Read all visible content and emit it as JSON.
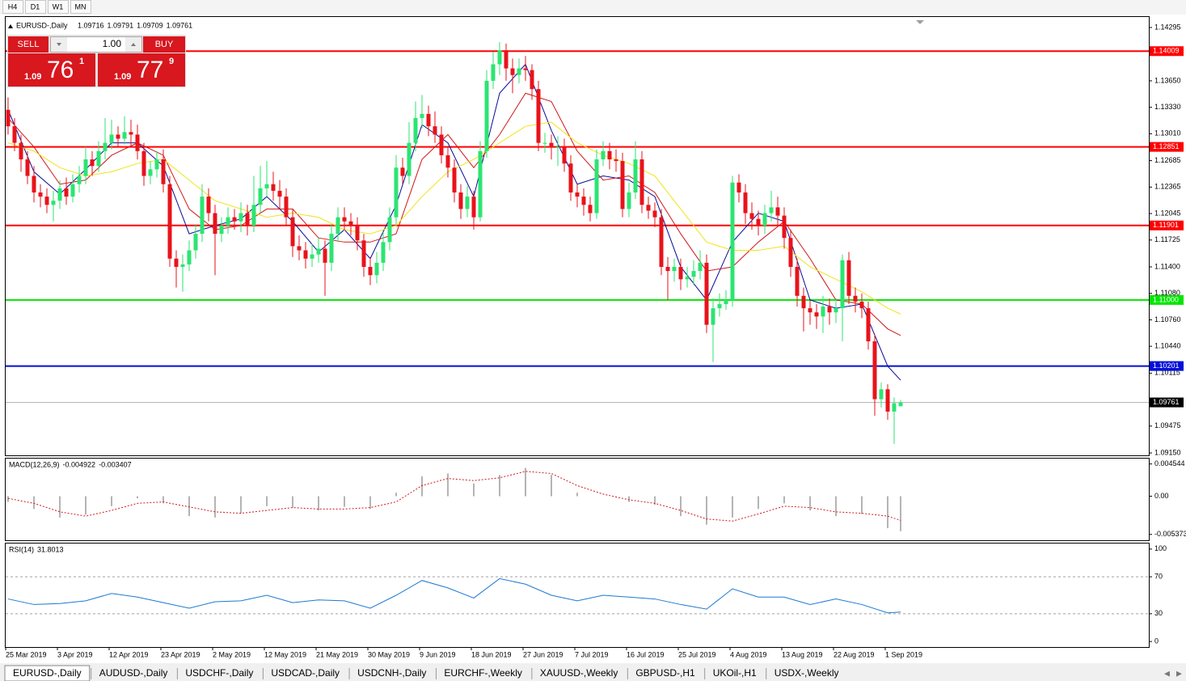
{
  "toolbar": [
    "H4",
    "D1",
    "W1",
    "MN"
  ],
  "trade_panel": {
    "sell": "SELL",
    "buy": "BUY",
    "volume": "1.00",
    "bid": {
      "big": "1.09",
      "pips": "76",
      "fraction": "1"
    },
    "ask": {
      "big": "1.09",
      "pips": "77",
      "fraction": "9"
    }
  },
  "chart_data": {
    "type": "candlestick",
    "symbol": "EURUSD-,Daily",
    "up_color": "#2be572",
    "down_color": "#e8131b",
    "ylim": [
      1.09121,
      1.14422
    ],
    "yticks": [
      1.14295,
      {
        "value": 1.1365,
        "label": "1.13650"
      },
      {
        "value": 1.1333,
        "label": "1.13330"
      },
      {
        "value": 1.1301,
        "label": "1.13010"
      },
      1.12685,
      1.12365,
      1.12045,
      1.11725,
      {
        "value": 1.114,
        "label": "1.11400"
      },
      {
        "value": 1.1108,
        "label": "1.11080"
      },
      {
        "value": 1.1076,
        "label": "1.10760"
      },
      {
        "value": 1.1044,
        "label": "1.10440"
      },
      1.10115,
      1.09475,
      {
        "value": 1.0915,
        "label": "1.09150"
      }
    ],
    "dates": [
      "25 Mar 2019",
      "3 Apr 2019",
      "12 Apr 2019",
      "23 Apr 2019",
      "2 May 2019",
      "12 May 2019",
      "21 May 2019",
      "30 May 2019",
      "9 Jun 2019",
      "18 Jun 2019",
      "27 Jun 2019",
      "7 Jul 2019",
      "16 Jul 2019",
      "25 Jul 2019",
      "4 Aug 2019",
      "13 Aug 2019",
      "22 Aug 2019",
      "1 Sep 2019"
    ],
    "open": [
      1.133,
      1.131,
      1.129,
      1.127,
      1.125,
      1.123,
      1.1225,
      1.1215,
      1.122,
      1.1235,
      1.1225,
      1.124,
      1.125,
      1.127,
      1.1262,
      1.128,
      1.129,
      1.13,
      1.1295,
      1.1303,
      1.13,
      1.128,
      1.125,
      1.1258,
      1.127,
      1.124,
      1.115,
      1.114,
      1.1143,
      1.116,
      1.118,
      1.1225,
      1.1205,
      1.118,
      1.119,
      1.12,
      1.1195,
      1.1205,
      1.119,
      1.1215,
      1.1235,
      1.124,
      1.1232,
      1.1225,
      1.12,
      1.1165,
      1.116,
      1.115,
      1.1155,
      1.1162,
      1.1145,
      1.118,
      1.12,
      1.1195,
      1.119,
      1.1172,
      1.114,
      1.113,
      1.1145,
      1.117,
      1.12,
      1.126,
      1.125,
      1.129,
      1.132,
      1.1325,
      1.131,
      1.13,
      1.1275,
      1.126,
      1.123,
      1.121,
      1.1225,
      1.12,
      1.128,
      1.1365,
      1.1385,
      1.1402,
      1.138,
      1.1372,
      1.138,
      1.1378,
      1.1355,
      1.129,
      1.129,
      1.1285,
      1.1285,
      1.1265,
      1.123,
      1.1225,
      1.1215,
      1.1205,
      1.127,
      1.128,
      1.127,
      1.1268,
      1.121,
      1.123,
      1.127,
      1.1215,
      1.1208,
      1.12,
      1.114,
      1.1135,
      1.114,
      1.1125,
      1.1128,
      1.1135,
      1.1145,
      1.107,
      1.109,
      1.1095,
      1.11,
      1.1242,
      1.123,
      1.1205,
      1.1198,
      1.119,
      1.1205,
      1.1212,
      1.1202,
      1.1175,
      1.114,
      1.1105,
      1.109,
      1.1085,
      1.108,
      1.1092,
      1.1085,
      1.109,
      1.1148,
      1.1105,
      1.1098,
      1.109,
      1.105,
      1.098,
      1.0992,
      1.0965,
      1.09716
    ],
    "high": [
      1.1345,
      1.132,
      1.13,
      1.128,
      1.1262,
      1.124,
      1.1235,
      1.1232,
      1.1245,
      1.1248,
      1.1252,
      1.1262,
      1.1285,
      1.128,
      1.1292,
      1.132,
      1.1318,
      1.131,
      1.1322,
      1.1318,
      1.1312,
      1.129,
      1.1268,
      1.128,
      1.1282,
      1.125,
      1.116,
      1.1155,
      1.1172,
      1.1192,
      1.124,
      1.1235,
      1.1215,
      1.12,
      1.1212,
      1.121,
      1.1218,
      1.1215,
      1.125,
      1.1262,
      1.1268,
      1.1255,
      1.1245,
      1.1235,
      1.121,
      1.1178,
      1.117,
      1.1168,
      1.1175,
      1.1172,
      1.1192,
      1.1212,
      1.1212,
      1.1205,
      1.12,
      1.118,
      1.1152,
      1.1158,
      1.1182,
      1.1212,
      1.1275,
      1.1272,
      1.1315,
      1.134,
      1.1348,
      1.1335,
      1.1328,
      1.131,
      1.1285,
      1.127,
      1.124,
      1.1238,
      1.1232,
      1.1292,
      1.1378,
      1.14,
      1.1412,
      1.141,
      1.1392,
      1.1392,
      1.1395,
      1.1385,
      1.1365,
      1.1302,
      1.13,
      1.1298,
      1.1295,
      1.1275,
      1.124,
      1.1235,
      1.1225,
      1.1282,
      1.1292,
      1.129,
      1.1282,
      1.1278,
      1.1242,
      1.1292,
      1.128,
      1.1225,
      1.1218,
      1.121,
      1.1152,
      1.115,
      1.115,
      1.114,
      1.1148,
      1.116,
      1.1155,
      1.1102,
      1.1108,
      1.1112,
      1.125,
      1.1252,
      1.124,
      1.1218,
      1.1208,
      1.1215,
      1.1232,
      1.1225,
      1.1212,
      1.1185,
      1.115,
      1.1115,
      1.11,
      1.1095,
      1.1105,
      1.1102,
      1.1102,
      1.1155,
      1.1158,
      1.1115,
      1.1108,
      1.1098,
      1.1058,
      1.1,
      1.0998,
      1.0982,
      1.09791
    ],
    "low": [
      1.13,
      1.128,
      1.1255,
      1.124,
      1.1218,
      1.1212,
      1.1205,
      1.1195,
      1.121,
      1.1215,
      1.1218,
      1.123,
      1.124,
      1.125,
      1.1255,
      1.127,
      1.1282,
      1.1285,
      1.1288,
      1.1285,
      1.127,
      1.1238,
      1.124,
      1.1248,
      1.123,
      1.114,
      1.1115,
      1.111,
      1.1135,
      1.115,
      1.117,
      1.1195,
      1.113,
      1.117,
      1.118,
      1.1185,
      1.1182,
      1.1178,
      1.1182,
      1.1205,
      1.1225,
      1.122,
      1.121,
      1.119,
      1.1152,
      1.1148,
      1.1138,
      1.114,
      1.1145,
      1.1105,
      1.1135,
      1.117,
      1.1185,
      1.1178,
      1.116,
      1.1128,
      1.1118,
      1.112,
      1.1135,
      1.116,
      1.119,
      1.124,
      1.124,
      1.128,
      1.1308,
      1.1298,
      1.129,
      1.1265,
      1.1248,
      1.1218,
      1.1198,
      1.12,
      1.1185,
      1.1195,
      1.1272,
      1.1355,
      1.1372,
      1.1365,
      1.135,
      1.1362,
      1.1365,
      1.1342,
      1.128,
      1.1278,
      1.127,
      1.1262,
      1.1255,
      1.122,
      1.1212,
      1.1202,
      1.1195,
      1.1198,
      1.1262,
      1.1258,
      1.1255,
      1.12,
      1.12,
      1.1222,
      1.1205,
      1.1198,
      1.1188,
      1.113,
      1.11,
      1.1122,
      1.1112,
      1.1115,
      1.1118,
      1.1125,
      1.106,
      1.1025,
      1.108,
      1.1088,
      1.1092,
      1.1218,
      1.1192,
      1.1185,
      1.1178,
      1.118,
      1.1195,
      1.119,
      1.1162,
      1.1128,
      1.1092,
      1.1062,
      1.107,
      1.1065,
      1.106,
      1.107,
      1.1072,
      1.105,
      1.1095,
      1.1085,
      1.1078,
      1.104,
      1.096,
      1.097,
      1.0955,
      1.0926,
      1.09709
    ],
    "close": [
      1.131,
      1.129,
      1.127,
      1.125,
      1.123,
      1.1225,
      1.1215,
      1.122,
      1.1235,
      1.1225,
      1.124,
      1.125,
      1.127,
      1.1262,
      1.128,
      1.129,
      1.13,
      1.1295,
      1.1303,
      1.13,
      1.128,
      1.125,
      1.1258,
      1.127,
      1.124,
      1.115,
      1.114,
      1.1143,
      1.116,
      1.118,
      1.1225,
      1.1205,
      1.118,
      1.119,
      1.12,
      1.1195,
      1.1205,
      1.119,
      1.1215,
      1.1235,
      1.124,
      1.1232,
      1.1225,
      1.12,
      1.1165,
      1.116,
      1.115,
      1.1155,
      1.1162,
      1.1145,
      1.118,
      1.12,
      1.1195,
      1.119,
      1.1172,
      1.114,
      1.113,
      1.1145,
      1.117,
      1.12,
      1.126,
      1.125,
      1.129,
      1.132,
      1.1325,
      1.131,
      1.13,
      1.1275,
      1.126,
      1.123,
      1.121,
      1.1225,
      1.12,
      1.128,
      1.1365,
      1.1385,
      1.1402,
      1.138,
      1.1372,
      1.138,
      1.1378,
      1.1355,
      1.129,
      1.129,
      1.1285,
      1.1285,
      1.1265,
      1.123,
      1.1225,
      1.1215,
      1.1205,
      1.127,
      1.128,
      1.127,
      1.1268,
      1.121,
      1.123,
      1.127,
      1.1215,
      1.1208,
      1.12,
      1.114,
      1.1135,
      1.114,
      1.1125,
      1.1128,
      1.1135,
      1.1145,
      1.107,
      1.109,
      1.1095,
      1.11,
      1.1242,
      1.123,
      1.1205,
      1.1198,
      1.119,
      1.1205,
      1.1212,
      1.1202,
      1.1175,
      1.114,
      1.1105,
      1.109,
      1.1085,
      1.108,
      1.1092,
      1.1085,
      1.109,
      1.1148,
      1.1105,
      1.1098,
      1.109,
      1.105,
      1.098,
      1.0992,
      1.0965,
      1.0975,
      1.09761
    ],
    "levels": [
      {
        "value": 1.14009,
        "color": "#ff0000"
      },
      {
        "value": 1.12851,
        "color": "#ff0000"
      },
      {
        "value": 1.11901,
        "color": "#ff0000"
      },
      {
        "value": 1.11,
        "label": "1.11000",
        "color": "#00e600"
      },
      {
        "value": 1.10201,
        "color": "#0010d8"
      }
    ],
    "current": 1.09761,
    "overlay_x": [
      0,
      4,
      8,
      12,
      16,
      20,
      24,
      28,
      32,
      36,
      40,
      44,
      48,
      52,
      56,
      60,
      64,
      68,
      72,
      76,
      80,
      84,
      88,
      92,
      96,
      100,
      104,
      108,
      112,
      116,
      120,
      124,
      128,
      132,
      136,
      138
    ],
    "overlays": [
      {
        "color": "#0a0a9a",
        "values": [
          1.133,
          1.1255,
          1.1228,
          1.1258,
          1.129,
          1.129,
          1.1262,
          1.118,
          1.119,
          1.1198,
          1.1225,
          1.1195,
          1.1158,
          1.1185,
          1.115,
          1.1215,
          1.1312,
          1.129,
          1.1225,
          1.135,
          1.1385,
          1.1305,
          1.124,
          1.125,
          1.1245,
          1.1225,
          1.114,
          1.11,
          1.117,
          1.1205,
          1.1195,
          1.11,
          1.109,
          1.1095,
          1.102,
          1.1003
        ]
      },
      {
        "color": "#d01818",
        "values": [
          1.132,
          1.1285,
          1.124,
          1.1245,
          1.1275,
          1.129,
          1.1275,
          1.121,
          1.1185,
          1.119,
          1.121,
          1.121,
          1.1175,
          1.117,
          1.117,
          1.118,
          1.127,
          1.13,
          1.126,
          1.13,
          1.135,
          1.134,
          1.128,
          1.1245,
          1.125,
          1.123,
          1.118,
          1.1135,
          1.114,
          1.117,
          1.1195,
          1.115,
          1.11,
          1.1095,
          1.1065,
          1.1057
        ]
      },
      {
        "color": "#f2e21a",
        "values": [
          1.129,
          1.128,
          1.126,
          1.125,
          1.1255,
          1.1265,
          1.127,
          1.1245,
          1.122,
          1.121,
          1.12,
          1.1205,
          1.12,
          1.1185,
          1.118,
          1.119,
          1.1225,
          1.1255,
          1.127,
          1.129,
          1.131,
          1.1315,
          1.129,
          1.1275,
          1.1265,
          1.125,
          1.121,
          1.117,
          1.116,
          1.116,
          1.1165,
          1.114,
          1.1125,
          1.111,
          1.109,
          1.1083
        ]
      }
    ],
    "macd": {
      "label": "MACD(12,26,9)",
      "ylim": [
        -0.0062,
        0.0053
      ],
      "yticks": [
        0.004544,
        {
          "value": 0,
          "label": "0.00"
        },
        -0.005373
      ],
      "hist_color": "#b4b4b4",
      "signal_color": "#d01818",
      "histogram": [
        -0.0008,
        -0.0018,
        -0.003,
        -0.0026,
        -0.0014,
        -0.0003,
        -0.001,
        -0.0028,
        -0.003,
        -0.0024,
        -0.0014,
        -0.0016,
        -0.002,
        -0.0015,
        -0.0018,
        0.0005,
        0.0028,
        0.0032,
        0.0018,
        0.003,
        0.004,
        0.003,
        0.0005,
        0.0,
        -0.0008,
        -0.0012,
        -0.0028,
        -0.004,
        -0.003,
        -0.0018,
        -0.001,
        -0.002,
        -0.0028,
        -0.0025,
        -0.0045,
        -0.004922
      ],
      "signal": [
        -0.0003,
        -0.001,
        -0.0022,
        -0.0028,
        -0.002,
        -0.001,
        -0.0008,
        -0.0015,
        -0.0022,
        -0.0024,
        -0.002,
        -0.0016,
        -0.0018,
        -0.0018,
        -0.0016,
        -0.0008,
        0.0015,
        0.0025,
        0.0022,
        0.0026,
        0.0035,
        0.0032,
        0.0015,
        0.0003,
        -0.0005,
        -0.001,
        -0.002,
        -0.0032,
        -0.0035,
        -0.0025,
        -0.0014,
        -0.0016,
        -0.0022,
        -0.0024,
        -0.0028,
        -0.003407
      ]
    },
    "rsi": {
      "label": "RSI(14)",
      "ylim": [
        -6,
        106
      ],
      "yticks": [
        100,
        70,
        30,
        0
      ],
      "levels": [
        70,
        30
      ],
      "color": "#1e78d2",
      "values": [
        46,
        40,
        41,
        44,
        52,
        48,
        42,
        36,
        43,
        44,
        50,
        42,
        45,
        44,
        36,
        50,
        66,
        58,
        47,
        68,
        62,
        50,
        44,
        50,
        48,
        46,
        40,
        35,
        57,
        48,
        48,
        40,
        46,
        40,
        31,
        31.8013
      ]
    }
  },
  "tabs": [
    "EURUSD-,Daily",
    "AUDUSD-,Daily",
    "USDCHF-,Daily",
    "USDCAD-,Daily",
    "USDCNH-,Daily",
    "EURCHF-,Weekly",
    "XAUUSD-,Weekly",
    "GBPUSD-,H1",
    "UKOil-,H1",
    "USDX-,Weekly"
  ]
}
